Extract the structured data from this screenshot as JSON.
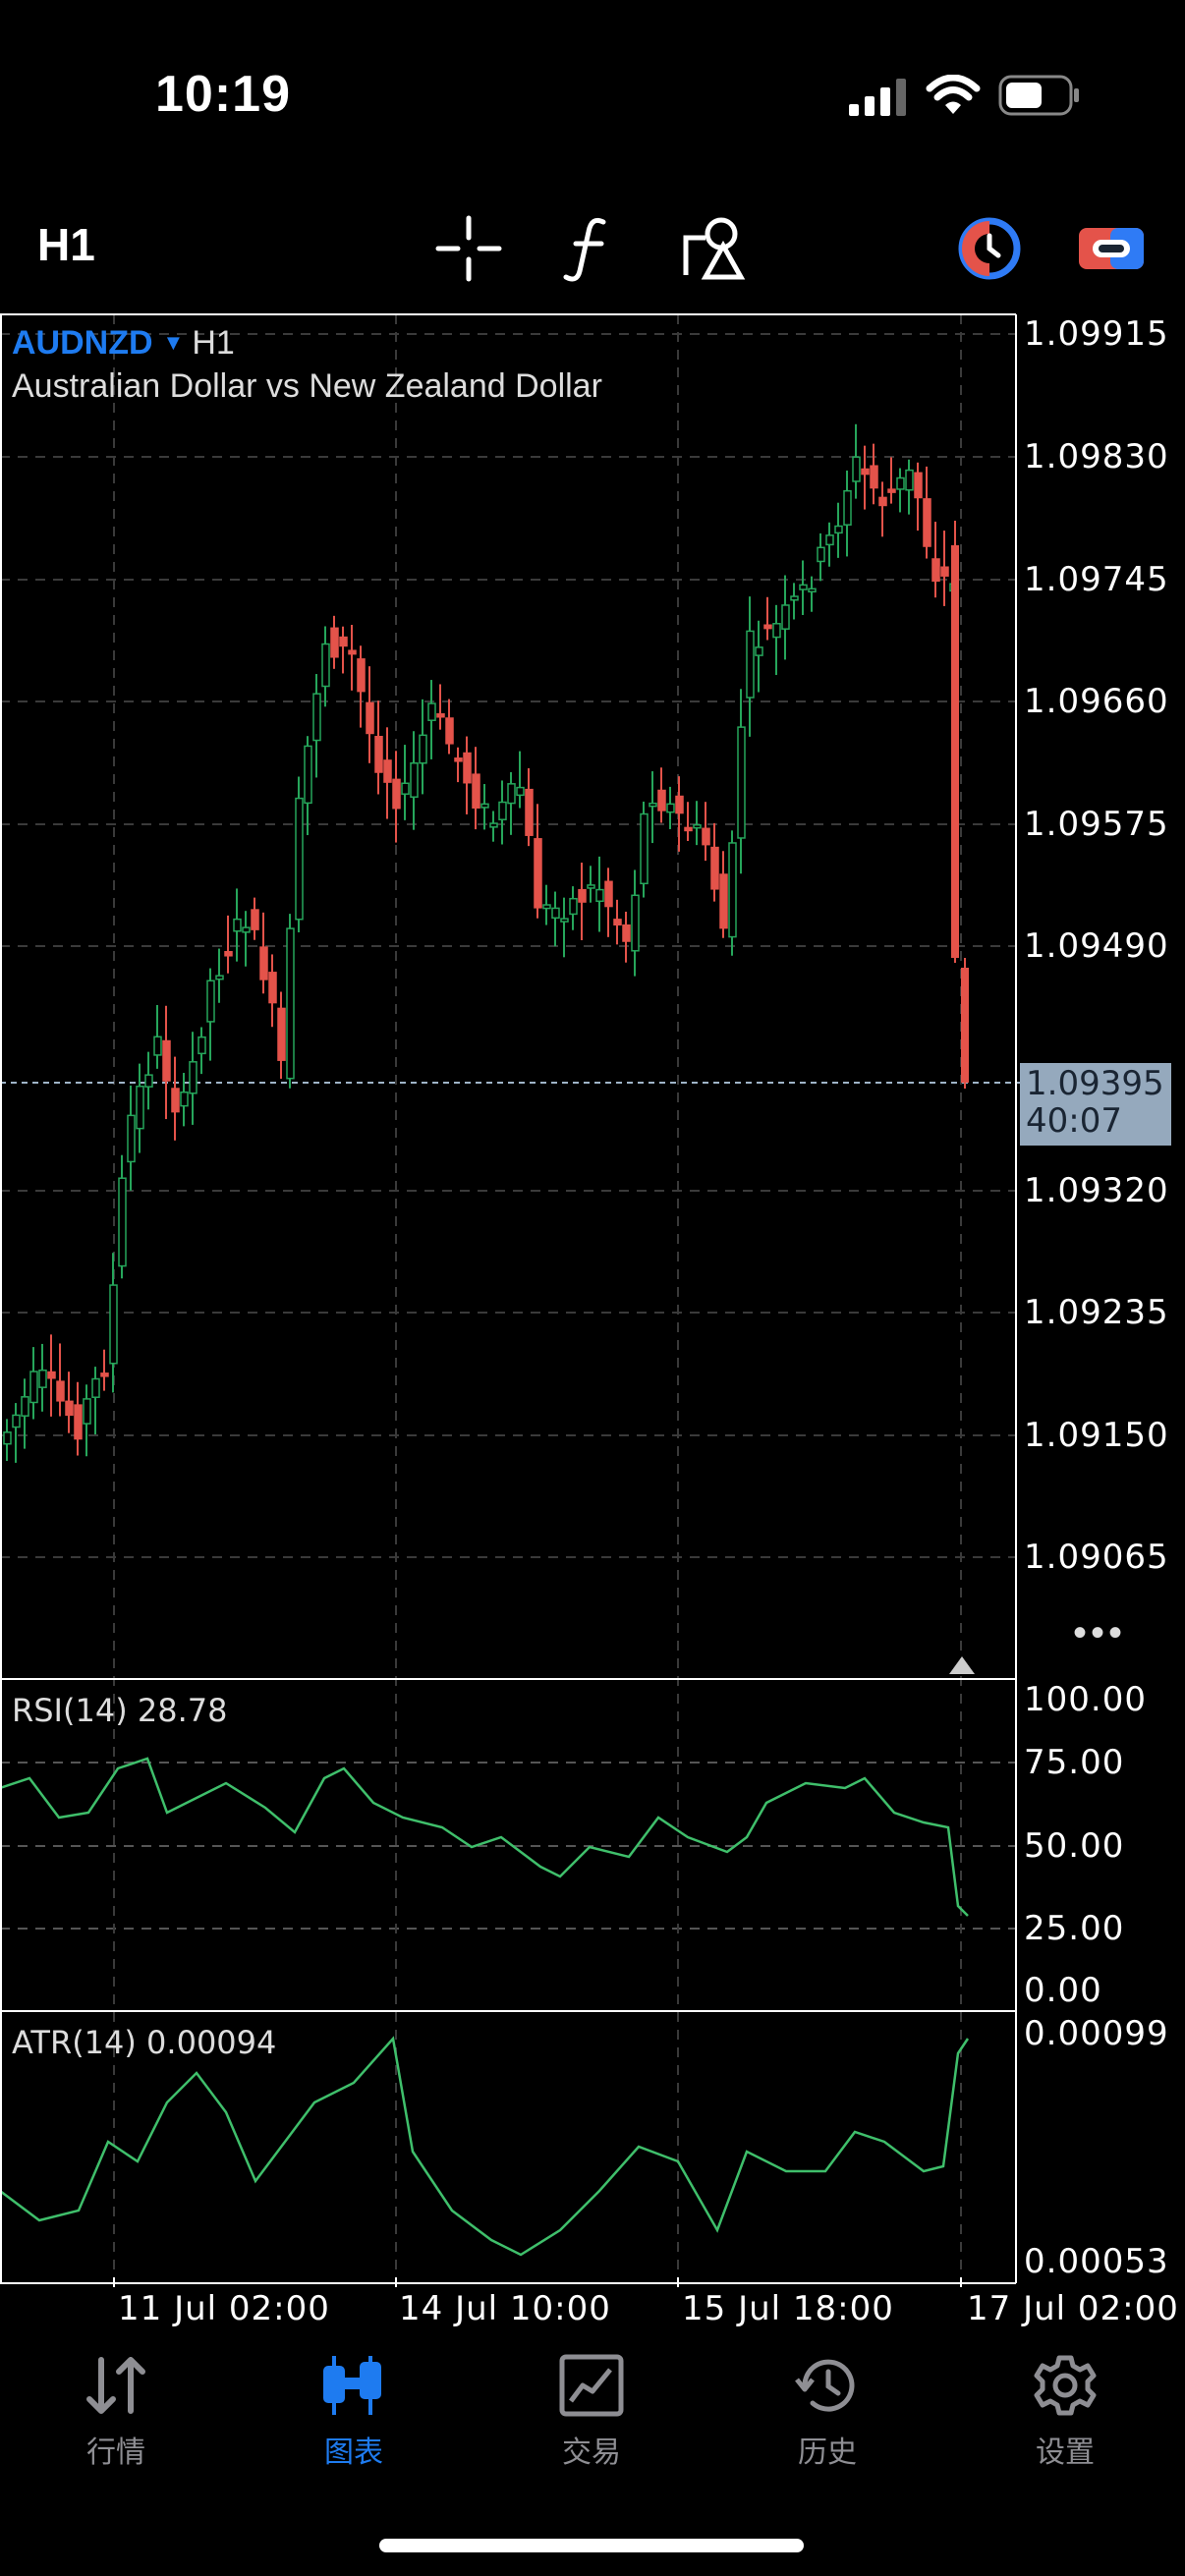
{
  "status_bar": {
    "time": "10:19"
  },
  "toolbar": {
    "timeframe": "H1",
    "icons": [
      "crosshair-icon",
      "function-icon",
      "objects-icon",
      "timer-icon",
      "account-icon"
    ]
  },
  "chart": {
    "symbol": "AUDNZD",
    "timeframe": "H1",
    "description": "Australian Dollar vs New Zealand Dollar",
    "current_price": "1.09395",
    "countdown": "40:07",
    "price_axis": [
      "1.09915",
      "1.09830",
      "1.09745",
      "1.09660",
      "1.09575",
      "1.09490",
      "1.09320",
      "1.09235",
      "1.09150",
      "1.09065"
    ],
    "time_axis": [
      "11 Jul 02:00",
      "14 Jul 10:00",
      "15 Jul 18:00",
      "17 Jul 02:00"
    ],
    "colors": {
      "bull": "#26a65b",
      "bear": "#e4534a",
      "grid": "#3a3a3a",
      "frame": "#ffffff"
    }
  },
  "rsi": {
    "label": "RSI(14)",
    "value": "28.78",
    "axis": [
      "100.00",
      "75.00",
      "50.00",
      "25.00",
      "0.00"
    ]
  },
  "atr": {
    "label": "ATR(14)",
    "value": "0.00094",
    "axis": [
      "0.00099",
      "0.00053"
    ]
  },
  "more_label": "•••",
  "tabs": [
    {
      "label": "行情",
      "icon": "quotes-icon"
    },
    {
      "label": "图表",
      "icon": "chart-icon",
      "active": true
    },
    {
      "label": "交易",
      "icon": "trade-icon"
    },
    {
      "label": "历史",
      "icon": "history-icon"
    },
    {
      "label": "设置",
      "icon": "settings-icon"
    }
  ]
}
